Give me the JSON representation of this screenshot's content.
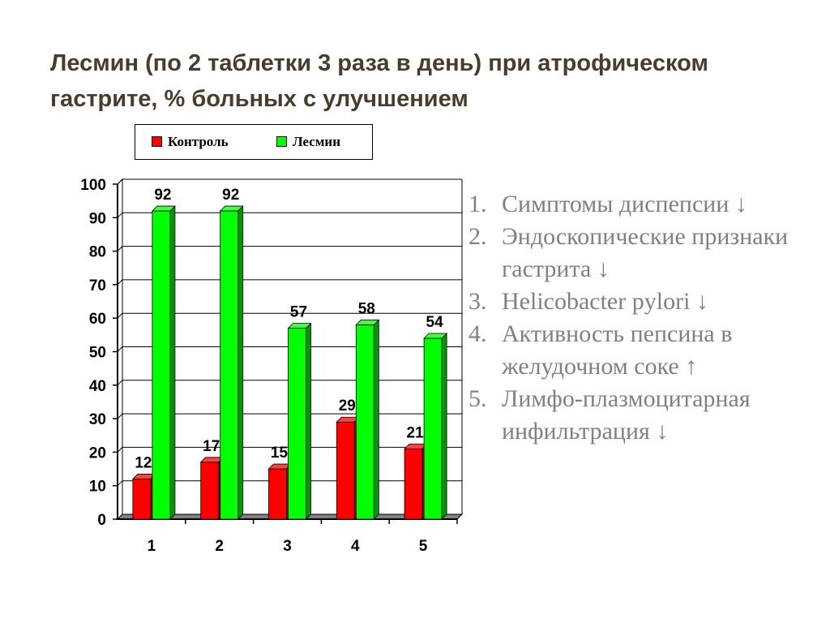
{
  "title": "Лесмин (по 2 таблетки 3 раза в день) при атрофическом гастрите, % больных с улучшением",
  "legend": [
    {
      "label": "Контроль",
      "color": "#ff0000"
    },
    {
      "label": "Лесмин",
      "color": "#00ff00"
    }
  ],
  "notes": [
    {
      "num": "1.",
      "text": "Симптомы диспепсии ↓"
    },
    {
      "num": "2.",
      "text": "Эндоскопические признаки гастрита ↓"
    },
    {
      "num": "3.",
      "text": "Helicobacter pylori ↓"
    },
    {
      "num": "4.",
      "text": "Активность пепсина в желудочном соке ↑"
    },
    {
      "num": "5.",
      "text": "Лимфо-плазмоцитарная инфильтрация ↓"
    }
  ],
  "chart_data": {
    "type": "bar",
    "categories": [
      "1",
      "2",
      "3",
      "4",
      "5"
    ],
    "series": [
      {
        "name": "Контроль",
        "color": "#ff0000",
        "values": [
          12,
          17,
          15,
          29,
          21
        ]
      },
      {
        "name": "Лесмин",
        "color": "#00ff00",
        "values": [
          92,
          92,
          57,
          58,
          54
        ]
      }
    ],
    "ylim": [
      0,
      100
    ],
    "yticks": [
      "0",
      "10",
      "20",
      "30",
      "40",
      "50",
      "60",
      "70",
      "80",
      "90",
      "100"
    ],
    "data_labels": true,
    "grid": true,
    "three_d": true,
    "legend_position": "top"
  }
}
